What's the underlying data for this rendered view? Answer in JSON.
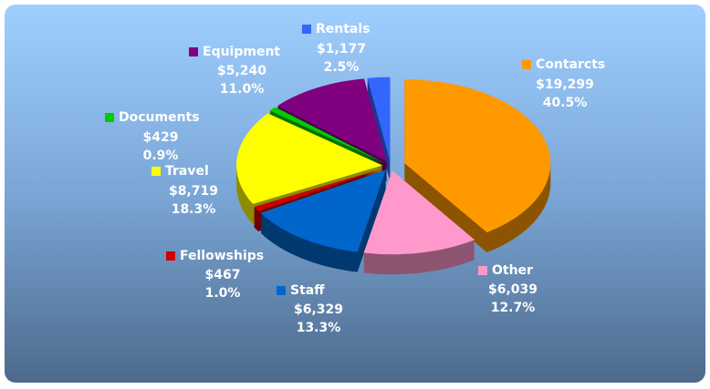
{
  "chart_data": {
    "type": "pie",
    "categories": [
      "Contarcts",
      "Other",
      "Staff",
      "Fellowships",
      "Travel",
      "Documents",
      "Equipment",
      "Rentals"
    ],
    "values": [
      19299,
      6039,
      6329,
      467,
      8719,
      429,
      5240,
      1177
    ],
    "value_labels": [
      "$19,299",
      "$6,039",
      "$6,329",
      "$467",
      "$8,719",
      "$429",
      "$5,240",
      "$1,177"
    ],
    "percent_labels": [
      "40.5%",
      "12.7%",
      "13.3%",
      "1.0%",
      "18.3%",
      "0.9%",
      "11.0%",
      "2.5%"
    ],
    "colors": [
      "#ff9900",
      "#ff99cc",
      "#0066cc",
      "#cc0000",
      "#ffff00",
      "#00cc00",
      "#800080",
      "#3366ff"
    ]
  }
}
